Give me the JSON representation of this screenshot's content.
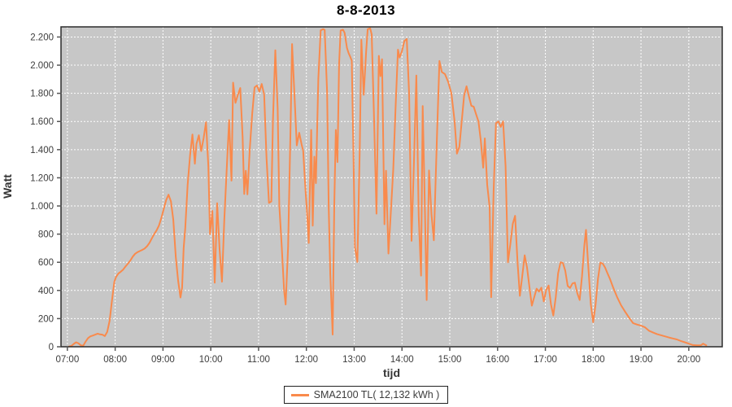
{
  "chart_data": {
    "type": "line",
    "title": "8-8-2013",
    "xlabel": "tijd",
    "ylabel": "Watt",
    "legend_label": "SMA2100 TL( 12,132 kWh )",
    "legend_position": "bottom-center",
    "grid": true,
    "colors": {
      "line": "#f98a4c",
      "plot_bg": "#c7c7c7",
      "grid": "#ffffff",
      "frame": "#2b2b2b",
      "tick": "#555555"
    },
    "x_tick_labels": [
      "07:00",
      "08:00",
      "09:00",
      "10:00",
      "11:00",
      "12:00",
      "13:00",
      "14:00",
      "15:00",
      "16:00",
      "17:00",
      "18:00",
      "19:00",
      "20:00"
    ],
    "y_tick_values": [
      0,
      200,
      400,
      600,
      800,
      1000,
      1200,
      1400,
      1600,
      1800,
      2000,
      2200
    ],
    "y_tick_labels": [
      "0",
      "200",
      "400",
      "600",
      "800",
      "1.000",
      "1.200",
      "1.400",
      "1.600",
      "1.800",
      "2.000",
      "2.200"
    ],
    "xlim_minutes": [
      412,
      1242
    ],
    "ylim": [
      0,
      2272
    ],
    "series": [
      {
        "name": "SMA2100 TL( 12,132 kWh )",
        "points": [
          [
            "07:02",
            2
          ],
          [
            "07:05",
            6
          ],
          [
            "07:08",
            20
          ],
          [
            "07:11",
            32
          ],
          [
            "07:14",
            24
          ],
          [
            "07:17",
            10
          ],
          [
            "07:20",
            8
          ],
          [
            "07:23",
            38
          ],
          [
            "07:26",
            62
          ],
          [
            "07:29",
            74
          ],
          [
            "07:32",
            80
          ],
          [
            "07:35",
            86
          ],
          [
            "07:38",
            93
          ],
          [
            "07:41",
            88
          ],
          [
            "07:44",
            86
          ],
          [
            "07:47",
            76
          ],
          [
            "07:50",
            105
          ],
          [
            "07:53",
            185
          ],
          [
            "07:56",
            330
          ],
          [
            "07:59",
            462
          ],
          [
            "08:01",
            495
          ],
          [
            "08:04",
            520
          ],
          [
            "08:07",
            533
          ],
          [
            "08:10",
            548
          ],
          [
            "08:13",
            570
          ],
          [
            "08:16",
            590
          ],
          [
            "08:19",
            612
          ],
          [
            "08:22",
            640
          ],
          [
            "08:25",
            660
          ],
          [
            "08:28",
            672
          ],
          [
            "08:31",
            680
          ],
          [
            "08:34",
            688
          ],
          [
            "08:37",
            697
          ],
          [
            "08:40",
            714
          ],
          [
            "08:43",
            737
          ],
          [
            "08:46",
            770
          ],
          [
            "08:49",
            800
          ],
          [
            "08:52",
            826
          ],
          [
            "08:55",
            862
          ],
          [
            "08:58",
            915
          ],
          [
            "09:01",
            980
          ],
          [
            "09:04",
            1042
          ],
          [
            "09:07",
            1080
          ],
          [
            "09:10",
            1032
          ],
          [
            "09:13",
            900
          ],
          [
            "09:16",
            640
          ],
          [
            "09:19",
            470
          ],
          [
            "09:22",
            350
          ],
          [
            "09:24",
            420
          ],
          [
            "09:26",
            700
          ],
          [
            "09:28",
            845
          ],
          [
            "09:31",
            1150
          ],
          [
            "09:34",
            1360
          ],
          [
            "09:37",
            1508
          ],
          [
            "09:40",
            1300
          ],
          [
            "09:42",
            1440
          ],
          [
            "09:45",
            1502
          ],
          [
            "09:48",
            1390
          ],
          [
            "09:51",
            1480
          ],
          [
            "09:54",
            1595
          ],
          [
            "09:57",
            1280
          ],
          [
            "09:59",
            800
          ],
          [
            "10:02",
            965
          ],
          [
            "10:05",
            455
          ],
          [
            "10:08",
            1020
          ],
          [
            "10:11",
            700
          ],
          [
            "10:14",
            462
          ],
          [
            "10:17",
            905
          ],
          [
            "10:20",
            1255
          ],
          [
            "10:23",
            1610
          ],
          [
            "10:26",
            1180
          ],
          [
            "10:28",
            1876
          ],
          [
            "10:31",
            1732
          ],
          [
            "10:34",
            1790
          ],
          [
            "10:37",
            1838
          ],
          [
            "10:40",
            1490
          ],
          [
            "10:42",
            1085
          ],
          [
            "10:44",
            1250
          ],
          [
            "10:46",
            1082
          ],
          [
            "10:49",
            1405
          ],
          [
            "10:52",
            1655
          ],
          [
            "10:55",
            1842
          ],
          [
            "10:58",
            1856
          ],
          [
            "11:01",
            1812
          ],
          [
            "11:04",
            1866
          ],
          [
            "11:07",
            1790
          ],
          [
            "11:10",
            1340
          ],
          [
            "11:13",
            1022
          ],
          [
            "11:16",
            1032
          ],
          [
            "11:18",
            1610
          ],
          [
            "11:21",
            2106
          ],
          [
            "11:24",
            1690
          ],
          [
            "11:26",
            1005
          ],
          [
            "11:29",
            722
          ],
          [
            "11:32",
            400
          ],
          [
            "11:34",
            300
          ],
          [
            "11:37",
            705
          ],
          [
            "11:40",
            1520
          ],
          [
            "11:42",
            2150
          ],
          [
            "11:45",
            1795
          ],
          [
            "11:48",
            1430
          ],
          [
            "11:51",
            1520
          ],
          [
            "11:54",
            1438
          ],
          [
            "11:56",
            1390
          ],
          [
            "11:59",
            1105
          ],
          [
            "12:01",
            940
          ],
          [
            "12:03",
            737
          ],
          [
            "12:06",
            1540
          ],
          [
            "12:08",
            860
          ],
          [
            "12:10",
            1350
          ],
          [
            "12:12",
            1162
          ],
          [
            "12:15",
            1905
          ],
          [
            "12:18",
            2248
          ],
          [
            "12:21",
            2256
          ],
          [
            "12:23",
            2250
          ],
          [
            "12:26",
            1805
          ],
          [
            "12:28",
            1005
          ],
          [
            "12:30",
            512
          ],
          [
            "12:33",
            87
          ],
          [
            "12:35",
            1005
          ],
          [
            "12:37",
            1540
          ],
          [
            "12:39",
            1312
          ],
          [
            "12:41",
            2005
          ],
          [
            "12:43",
            2246
          ],
          [
            "12:46",
            2252
          ],
          [
            "12:48",
            2230
          ],
          [
            "12:51",
            2122
          ],
          [
            "12:53",
            2086
          ],
          [
            "12:55",
            2060
          ],
          [
            "12:57",
            2032
          ],
          [
            "12:59",
            1400
          ],
          [
            "13:01",
            708
          ],
          [
            "13:04",
            602
          ],
          [
            "13:07",
            1400
          ],
          [
            "13:09",
            2180
          ],
          [
            "13:12",
            1790
          ],
          [
            "13:15",
            2100
          ],
          [
            "13:17",
            2256
          ],
          [
            "13:20",
            2262
          ],
          [
            "13:22",
            2218
          ],
          [
            "13:25",
            1600
          ],
          [
            "13:28",
            945
          ],
          [
            "13:31",
            2066
          ],
          [
            "13:33",
            1922
          ],
          [
            "13:35",
            2042
          ],
          [
            "13:38",
            870
          ],
          [
            "13:40",
            1250
          ],
          [
            "13:43",
            662
          ],
          [
            "13:46",
            952
          ],
          [
            "13:49",
            1258
          ],
          [
            "13:52",
            1705
          ],
          [
            "13:55",
            2110
          ],
          [
            "13:57",
            2054
          ],
          [
            "14:00",
            2100
          ],
          [
            "14:03",
            2172
          ],
          [
            "14:06",
            2186
          ],
          [
            "14:09",
            1800
          ],
          [
            "14:12",
            752
          ],
          [
            "14:15",
            1300
          ],
          [
            "14:18",
            1926
          ],
          [
            "14:21",
            932
          ],
          [
            "14:24",
            505
          ],
          [
            "14:26",
            1710
          ],
          [
            "14:29",
            930
          ],
          [
            "14:31",
            332
          ],
          [
            "14:34",
            1252
          ],
          [
            "14:37",
            940
          ],
          [
            "14:40",
            756
          ],
          [
            "14:44",
            1502
          ],
          [
            "14:47",
            2030
          ],
          [
            "14:50",
            1952
          ],
          [
            "14:54",
            1936
          ],
          [
            "14:58",
            1882
          ],
          [
            "15:02",
            1800
          ],
          [
            "15:06",
            1602
          ],
          [
            "15:09",
            1372
          ],
          [
            "15:12",
            1420
          ],
          [
            "15:15",
            1602
          ],
          [
            "15:18",
            1782
          ],
          [
            "15:21",
            1850
          ],
          [
            "15:24",
            1780
          ],
          [
            "15:27",
            1712
          ],
          [
            "15:30",
            1705
          ],
          [
            "15:33",
            1652
          ],
          [
            "15:36",
            1600
          ],
          [
            "15:39",
            1462
          ],
          [
            "15:42",
            1272
          ],
          [
            "15:44",
            1480
          ],
          [
            "15:47",
            1152
          ],
          [
            "15:50",
            992
          ],
          [
            "15:52",
            352
          ],
          [
            "15:55",
            1105
          ],
          [
            "15:58",
            1588
          ],
          [
            "16:01",
            1600
          ],
          [
            "16:04",
            1562
          ],
          [
            "16:07",
            1600
          ],
          [
            "16:10",
            1282
          ],
          [
            "16:13",
            600
          ],
          [
            "16:16",
            725
          ],
          [
            "16:19",
            872
          ],
          [
            "16:22",
            930
          ],
          [
            "16:25",
            602
          ],
          [
            "16:28",
            362
          ],
          [
            "16:31",
            502
          ],
          [
            "16:34",
            650
          ],
          [
            "16:37",
            562
          ],
          [
            "16:40",
            422
          ],
          [
            "16:43",
            292
          ],
          [
            "16:46",
            352
          ],
          [
            "16:49",
            412
          ],
          [
            "16:52",
            392
          ],
          [
            "16:55",
            420
          ],
          [
            "16:58",
            322
          ],
          [
            "17:01",
            402
          ],
          [
            "17:04",
            435
          ],
          [
            "17:07",
            302
          ],
          [
            "17:10",
            222
          ],
          [
            "17:13",
            352
          ],
          [
            "17:16",
            522
          ],
          [
            "17:19",
            600
          ],
          [
            "17:22",
            595
          ],
          [
            "17:25",
            540
          ],
          [
            "17:28",
            432
          ],
          [
            "17:31",
            418
          ],
          [
            "17:34",
            450
          ],
          [
            "17:37",
            455
          ],
          [
            "17:40",
            382
          ],
          [
            "17:43",
            332
          ],
          [
            "17:46",
            502
          ],
          [
            "17:49",
            722
          ],
          [
            "17:51",
            830
          ],
          [
            "17:54",
            562
          ],
          [
            "17:57",
            302
          ],
          [
            "18:00",
            174
          ],
          [
            "18:03",
            302
          ],
          [
            "18:06",
            482
          ],
          [
            "18:09",
            598
          ],
          [
            "18:12",
            590
          ],
          [
            "18:15",
            562
          ],
          [
            "18:18",
            522
          ],
          [
            "18:21",
            483
          ],
          [
            "18:25",
            422
          ],
          [
            "18:30",
            353
          ],
          [
            "18:35",
            295
          ],
          [
            "18:40",
            250
          ],
          [
            "18:45",
            207
          ],
          [
            "18:50",
            168
          ],
          [
            "18:55",
            158
          ],
          [
            "19:00",
            150
          ],
          [
            "19:05",
            138
          ],
          [
            "19:10",
            114
          ],
          [
            "19:15",
            102
          ],
          [
            "19:20",
            90
          ],
          [
            "19:25",
            82
          ],
          [
            "19:30",
            74
          ],
          [
            "19:35",
            66
          ],
          [
            "19:40",
            59
          ],
          [
            "19:45",
            52
          ],
          [
            "19:50",
            41
          ],
          [
            "19:55",
            32
          ],
          [
            "20:00",
            22
          ],
          [
            "20:05",
            12
          ],
          [
            "20:10",
            10
          ],
          [
            "20:15",
            10
          ],
          [
            "20:18",
            22
          ],
          [
            "20:22",
            10
          ]
        ]
      }
    ]
  }
}
